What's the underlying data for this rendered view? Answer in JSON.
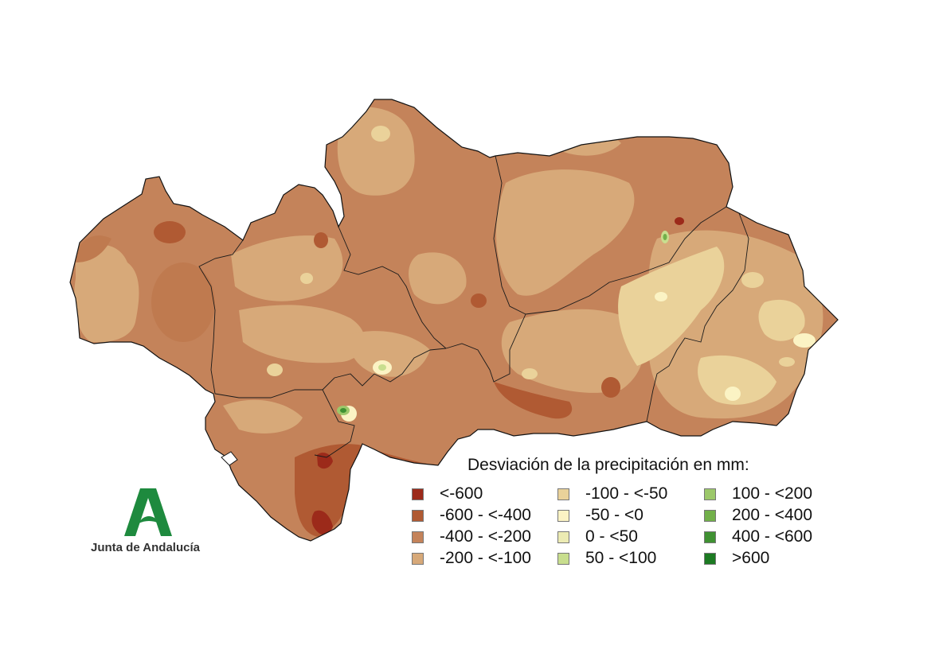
{
  "legend": {
    "title": "Desviación de la precipitación en mm:",
    "items": [
      {
        "label": "<-600",
        "color": "#9c2a1a"
      },
      {
        "label": "-600 - <-400",
        "color": "#b05a33"
      },
      {
        "label": "-400 - <-200",
        "color": "#c4835a"
      },
      {
        "label": "-200 - <-100",
        "color": "#d7a979"
      },
      {
        "label": "-100 - <-50",
        "color": "#ead29a"
      },
      {
        "label": "-50 - <0",
        "color": "#fbf3c4"
      },
      {
        "label": "0 - <50",
        "color": "#ecebb3"
      },
      {
        "label": "50 - <100",
        "color": "#c8de8e"
      },
      {
        "label": "100 - <200",
        "color": "#9cc86a"
      },
      {
        "label": "200 - <400",
        "color": "#72b04a"
      },
      {
        "label": "400 - <600",
        "color": "#3f9132"
      },
      {
        "label": ">600",
        "color": "#1c7a22"
      }
    ]
  },
  "logo": {
    "text": "Junta de Andalucía",
    "color": "#1e8a3e"
  }
}
